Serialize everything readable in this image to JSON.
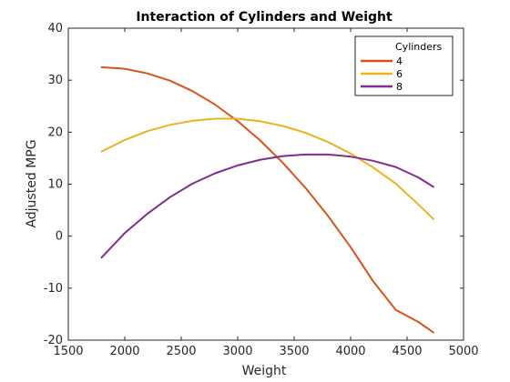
{
  "chart_data": {
    "type": "line",
    "title": "Interaction of Cylinders and Weight",
    "xlabel": "Weight",
    "ylabel": "Adjusted MPG",
    "xlim": [
      1500,
      5000
    ],
    "ylim": [
      -20,
      40
    ],
    "xticks": [
      1500,
      2000,
      2500,
      3000,
      3500,
      4000,
      4500,
      5000
    ],
    "yticks": [
      -20,
      -10,
      0,
      10,
      20,
      30,
      40
    ],
    "xtick_labels": [
      "1500",
      "2000",
      "2500",
      "3000",
      "3500",
      "4000",
      "4500",
      "5000"
    ],
    "ytick_labels": [
      "-20",
      "-10",
      "0",
      "10",
      "20",
      "30",
      "40"
    ],
    "grid": false,
    "legend": {
      "title": "Cylinders",
      "placement": "top-right"
    },
    "series": [
      {
        "name": "4",
        "color": "#D95319",
        "x": [
          1795,
          2000,
          2200,
          2400,
          2600,
          2800,
          3000,
          3200,
          3400,
          3600,
          3800,
          4000,
          4200,
          4400,
          4600,
          4732
        ],
        "y": [
          32.5,
          32.2,
          31.3,
          29.9,
          27.9,
          25.3,
          22.1,
          18.4,
          14.1,
          9.3,
          3.9,
          -2.1,
          -8.7,
          -14.2,
          -16.5,
          -18.5
        ]
      },
      {
        "name": "6",
        "color": "#EDB120",
        "x": [
          1795,
          2000,
          2200,
          2400,
          2600,
          2800,
          3000,
          3200,
          3400,
          3600,
          3800,
          4000,
          4200,
          4400,
          4600,
          4732
        ],
        "y": [
          16.3,
          18.5,
          20.2,
          21.4,
          22.2,
          22.6,
          22.6,
          22.1,
          21.2,
          19.9,
          18.1,
          15.9,
          13.2,
          10.1,
          6.1,
          3.3
        ]
      },
      {
        "name": "8",
        "color": "#7E2F8E",
        "x": [
          1795,
          2000,
          2200,
          2400,
          2600,
          2800,
          3000,
          3200,
          3400,
          3600,
          3800,
          4000,
          4200,
          4400,
          4600,
          4732
        ],
        "y": [
          -4.1,
          0.6,
          4.3,
          7.5,
          10.1,
          12.1,
          13.6,
          14.7,
          15.4,
          15.7,
          15.7,
          15.3,
          14.5,
          13.3,
          11.3,
          9.5
        ]
      }
    ]
  }
}
